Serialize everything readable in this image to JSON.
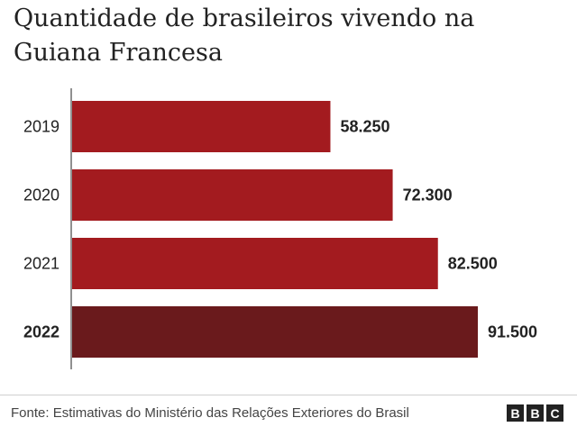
{
  "chart_data": {
    "type": "bar",
    "orientation": "horizontal",
    "title": "Quantidade de brasileiros vivendo na Guiana Francesa",
    "categories": [
      "2019",
      "2020",
      "2021",
      "2022"
    ],
    "values": [
      58250,
      72300,
      82500,
      91500
    ],
    "value_labels": [
      "58.250",
      "72.300",
      "82.500",
      "91.500"
    ],
    "highlighted_category": "2022",
    "xlim": [
      0,
      91500
    ],
    "grid": false,
    "colors": {
      "bar": "#a31b1f",
      "highlight": "#6a1a1c"
    }
  },
  "footer": {
    "source": "Fonte: Estimativas do Ministério das Relações Exteriores do Brasil",
    "logo": [
      "B",
      "B",
      "C"
    ]
  }
}
